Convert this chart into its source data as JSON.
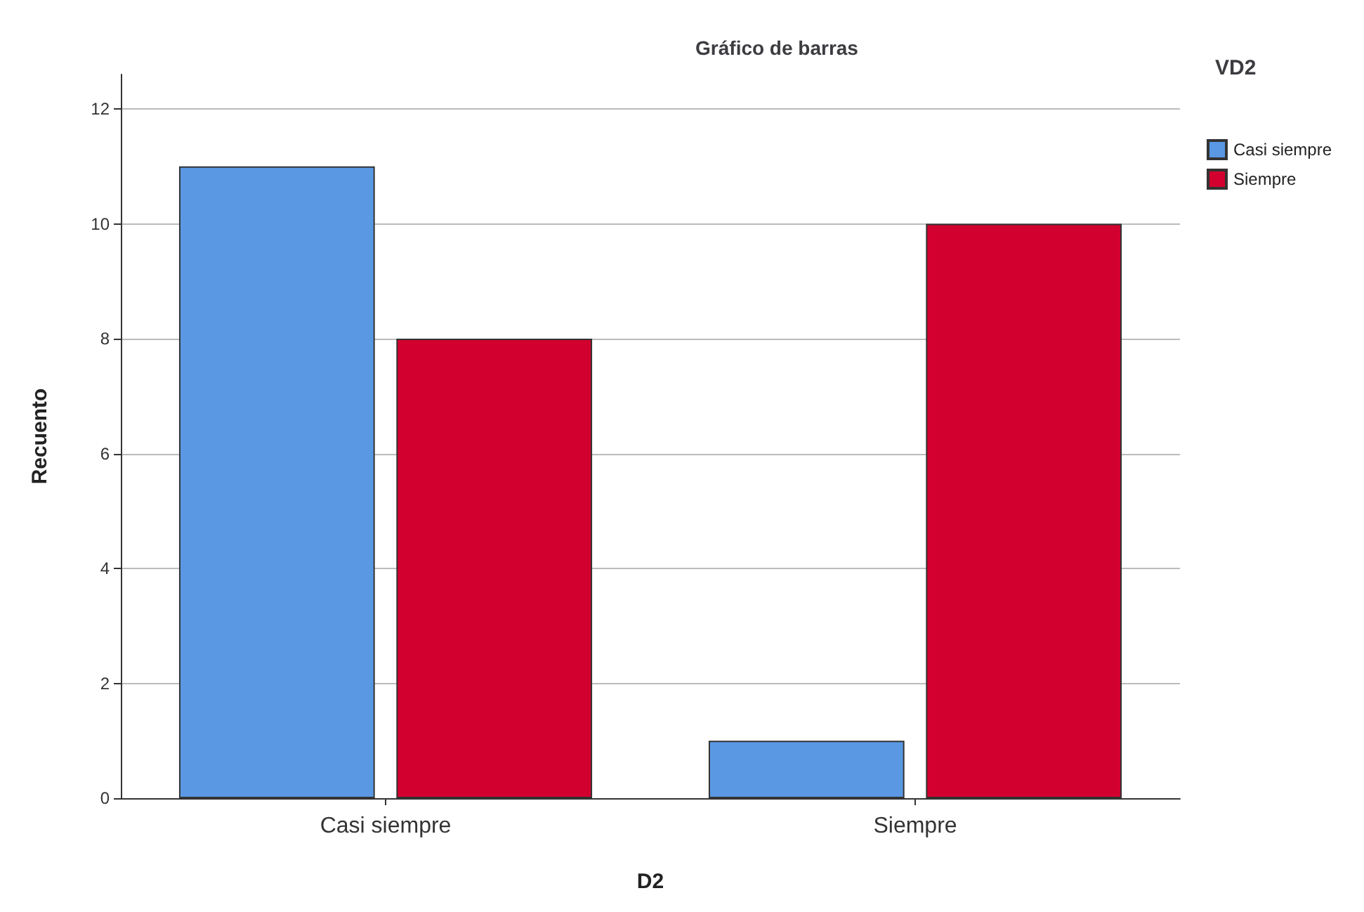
{
  "chart_data": {
    "type": "bar",
    "title": "Gráfico de barras",
    "xlabel": "D2",
    "ylabel": "Recuento",
    "legend_title": "VD2",
    "categories": [
      "Casi siempre",
      "Siempre"
    ],
    "series": [
      {
        "name": "Casi siempre",
        "color": "#5a98e4",
        "values": [
          11,
          1
        ]
      },
      {
        "name": "Siempre",
        "color": "#d2002e",
        "values": [
          8,
          10
        ]
      }
    ],
    "ylim": [
      0,
      12.6
    ],
    "yticks": [
      0,
      2,
      4,
      6,
      8,
      10,
      12
    ],
    "grid": "y",
    "legend": "top right"
  }
}
